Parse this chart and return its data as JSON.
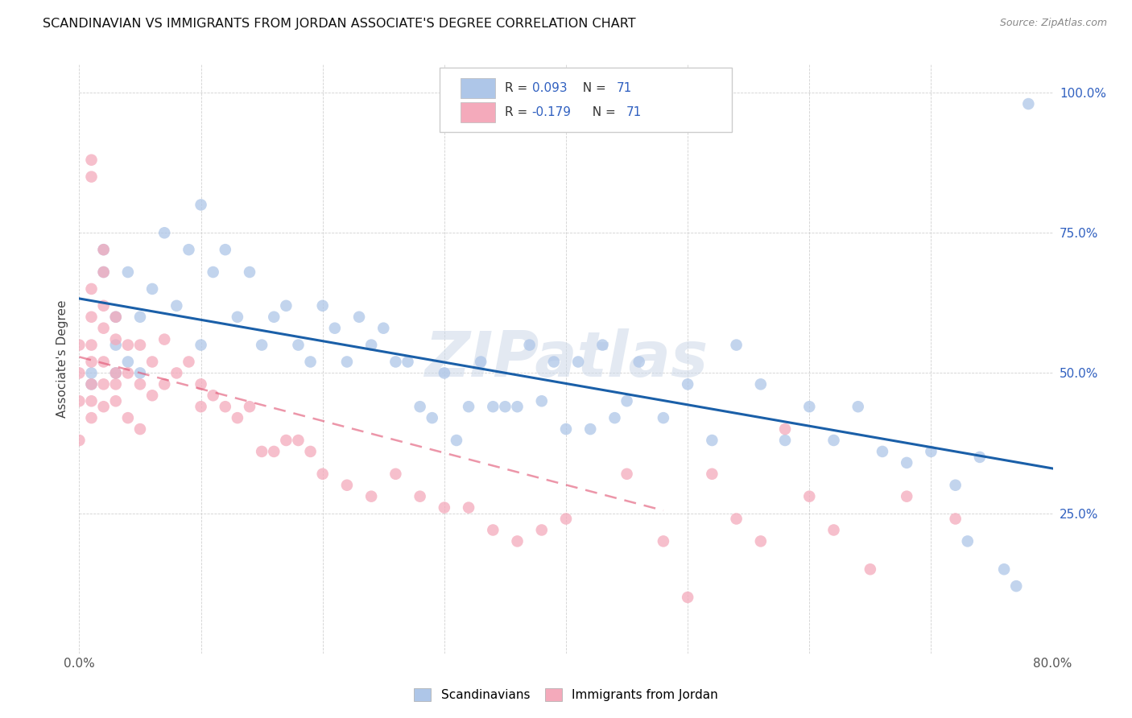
{
  "title": "SCANDINAVIAN VS IMMIGRANTS FROM JORDAN ASSOCIATE'S DEGREE CORRELATION CHART",
  "source": "Source: ZipAtlas.com",
  "ylabel": "Associate's Degree",
  "xlim": [
    0.0,
    0.8
  ],
  "ylim": [
    0.0,
    1.05
  ],
  "xtick_positions": [
    0.0,
    0.1,
    0.2,
    0.3,
    0.4,
    0.5,
    0.6,
    0.7,
    0.8
  ],
  "xticklabels": [
    "0.0%",
    "",
    "",
    "",
    "",
    "",
    "",
    "",
    "80.0%"
  ],
  "ytick_positions": [
    0.0,
    0.25,
    0.5,
    0.75,
    1.0
  ],
  "ytick_labels": [
    "",
    "25.0%",
    "50.0%",
    "75.0%",
    "100.0%"
  ],
  "blue_color": "#aec6e8",
  "pink_color": "#f4aabb",
  "blue_line_color": "#1a5fa8",
  "pink_line_color": "#e05070",
  "watermark": "ZIPatlas",
  "R_blue": 0.093,
  "N_blue": 71,
  "R_pink": -0.179,
  "N_pink": 71,
  "scandinavians_x": [
    0.01,
    0.01,
    0.02,
    0.02,
    0.03,
    0.03,
    0.03,
    0.04,
    0.04,
    0.05,
    0.05,
    0.06,
    0.07,
    0.08,
    0.09,
    0.1,
    0.1,
    0.11,
    0.12,
    0.13,
    0.14,
    0.15,
    0.16,
    0.17,
    0.18,
    0.19,
    0.2,
    0.21,
    0.22,
    0.23,
    0.24,
    0.25,
    0.26,
    0.27,
    0.28,
    0.29,
    0.3,
    0.31,
    0.32,
    0.33,
    0.34,
    0.35,
    0.36,
    0.37,
    0.38,
    0.39,
    0.4,
    0.41,
    0.42,
    0.43,
    0.44,
    0.45,
    0.46,
    0.48,
    0.5,
    0.52,
    0.54,
    0.56,
    0.58,
    0.6,
    0.62,
    0.64,
    0.66,
    0.68,
    0.7,
    0.72,
    0.73,
    0.74,
    0.76,
    0.77,
    0.78
  ],
  "scandinavians_y": [
    0.5,
    0.48,
    0.68,
    0.72,
    0.6,
    0.55,
    0.5,
    0.68,
    0.52,
    0.6,
    0.5,
    0.65,
    0.75,
    0.62,
    0.72,
    0.8,
    0.55,
    0.68,
    0.72,
    0.6,
    0.68,
    0.55,
    0.6,
    0.62,
    0.55,
    0.52,
    0.62,
    0.58,
    0.52,
    0.6,
    0.55,
    0.58,
    0.52,
    0.52,
    0.44,
    0.42,
    0.5,
    0.38,
    0.44,
    0.52,
    0.44,
    0.44,
    0.44,
    0.55,
    0.45,
    0.52,
    0.4,
    0.52,
    0.4,
    0.55,
    0.42,
    0.45,
    0.52,
    0.42,
    0.48,
    0.38,
    0.55,
    0.48,
    0.38,
    0.44,
    0.38,
    0.44,
    0.36,
    0.34,
    0.36,
    0.3,
    0.2,
    0.35,
    0.15,
    0.12,
    0.98
  ],
  "jordan_x": [
    0.0,
    0.0,
    0.0,
    0.0,
    0.01,
    0.01,
    0.01,
    0.01,
    0.01,
    0.01,
    0.01,
    0.01,
    0.01,
    0.02,
    0.02,
    0.02,
    0.02,
    0.02,
    0.02,
    0.02,
    0.03,
    0.03,
    0.03,
    0.03,
    0.03,
    0.04,
    0.04,
    0.04,
    0.05,
    0.05,
    0.05,
    0.06,
    0.06,
    0.07,
    0.07,
    0.08,
    0.09,
    0.1,
    0.1,
    0.11,
    0.12,
    0.13,
    0.14,
    0.15,
    0.16,
    0.17,
    0.18,
    0.19,
    0.2,
    0.22,
    0.24,
    0.26,
    0.28,
    0.3,
    0.32,
    0.34,
    0.36,
    0.38,
    0.4,
    0.45,
    0.48,
    0.5,
    0.52,
    0.54,
    0.56,
    0.58,
    0.6,
    0.62,
    0.65,
    0.68,
    0.72
  ],
  "jordan_y": [
    0.55,
    0.5,
    0.45,
    0.38,
    0.88,
    0.85,
    0.65,
    0.6,
    0.55,
    0.52,
    0.48,
    0.45,
    0.42,
    0.72,
    0.68,
    0.62,
    0.58,
    0.52,
    0.48,
    0.44,
    0.6,
    0.56,
    0.5,
    0.48,
    0.45,
    0.55,
    0.5,
    0.42,
    0.55,
    0.48,
    0.4,
    0.52,
    0.46,
    0.56,
    0.48,
    0.5,
    0.52,
    0.48,
    0.44,
    0.46,
    0.44,
    0.42,
    0.44,
    0.36,
    0.36,
    0.38,
    0.38,
    0.36,
    0.32,
    0.3,
    0.28,
    0.32,
    0.28,
    0.26,
    0.26,
    0.22,
    0.2,
    0.22,
    0.24,
    0.32,
    0.2,
    0.1,
    0.32,
    0.24,
    0.2,
    0.4,
    0.28,
    0.22,
    0.15,
    0.28,
    0.24
  ]
}
